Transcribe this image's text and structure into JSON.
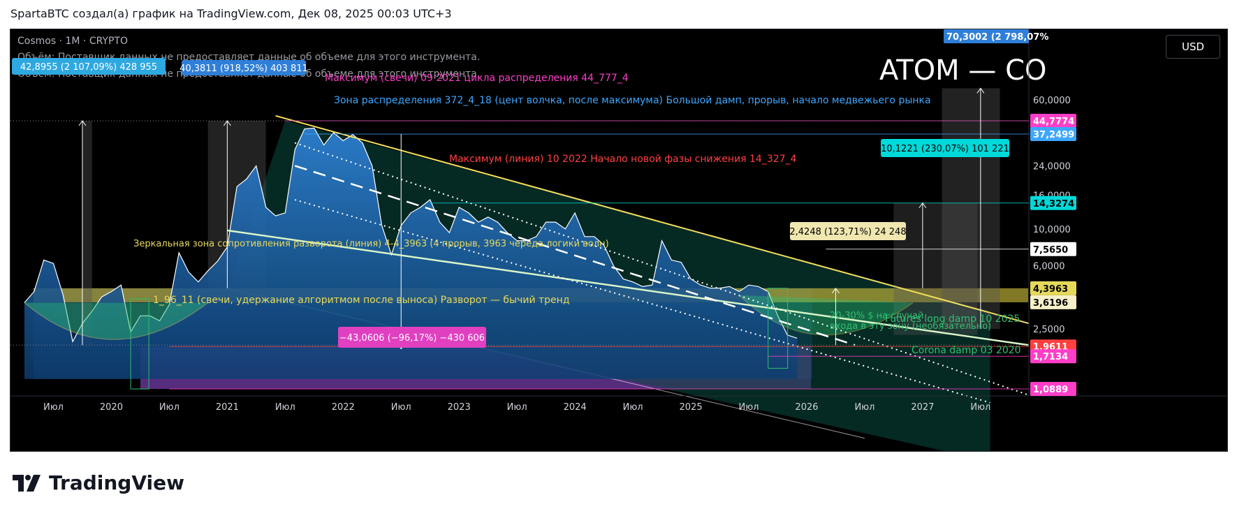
{
  "header": {
    "caption": "SpartaBTC создал(а) график на TradingView.com, Дек 08, 2025 00:03 UTC+3"
  },
  "brand": {
    "name": "TradingView"
  },
  "currency_button": "USD",
  "colors": {
    "background": "#000000",
    "price_fill": "#1f6fb8",
    "yellow_line": "#e6d95a",
    "distribution_zone": "#3da6ff",
    "max_label": "#ff3ec8",
    "red_label": "#ff4040",
    "green_zone": "#2fbf71",
    "purple_zone": "#7b3fb0"
  },
  "chart_data": {
    "type": "area",
    "symbol_title": "Cosmos · 1M · CRYPTO",
    "volume_notes": [
      "Объём: Поставщик данных не предоставляет данные об объеме для этого инструмента.",
      "Объём: Поставщик данных не предоставляет данные об объеме для этого инструмента."
    ],
    "big_title": "ATOM — CO",
    "y_scale": "log",
    "ylim": [
      1.2,
      100
    ],
    "xlim": [
      "2019-04",
      "2027-12"
    ],
    "x_ticks": [
      {
        "date": "2019-07",
        "label": "Июл"
      },
      {
        "date": "2020-01",
        "label": "2020"
      },
      {
        "date": "2020-07",
        "label": "Июл"
      },
      {
        "date": "2021-01",
        "label": "2021"
      },
      {
        "date": "2021-07",
        "label": "Июл"
      },
      {
        "date": "2022-01",
        "label": "2022"
      },
      {
        "date": "2022-07",
        "label": "Июл"
      },
      {
        "date": "2023-01",
        "label": "2023"
      },
      {
        "date": "2023-07",
        "label": "Июл"
      },
      {
        "date": "2024-01",
        "label": "2024"
      },
      {
        "date": "2024-07",
        "label": "Июл"
      },
      {
        "date": "2025-01",
        "label": "2025"
      },
      {
        "date": "2025-07",
        "label": "Июл"
      },
      {
        "date": "2026-01",
        "label": "2026"
      },
      {
        "date": "2026-07",
        "label": "Июл"
      },
      {
        "date": "2027-01",
        "label": "2027"
      },
      {
        "date": "2027-07",
        "label": "Июл"
      }
    ],
    "y_ticks": [
      "60,0000",
      "24,0000",
      "16,0000",
      "10,0000",
      "6,0000",
      "2,5000"
    ],
    "y_tick_values": [
      60,
      24,
      16,
      10,
      6,
      2.5
    ],
    "price_labels": [
      {
        "value": 70.3002,
        "text": "70,3002 (2 798,07%",
        "color": "#2f7fd8"
      },
      {
        "value": 44.7774,
        "text": "44,7774",
        "color": "#ff3ec8"
      },
      {
        "value": 37.2499,
        "text": "37,2499",
        "color": "#3da6ff"
      },
      {
        "value": 14.3274,
        "text": "14,3274",
        "color": "#00d9d9"
      },
      {
        "value": 7.565,
        "text": "7,5650",
        "color": "#ffffff"
      },
      {
        "value": 4.3963,
        "text": "4,3963",
        "color": "#e6d95a"
      },
      {
        "value": 3.6196,
        "text": "3,6196",
        "color": "#f5f0c8"
      },
      {
        "value": 1.9611,
        "text": "1,9611",
        "color": "#ff4040"
      },
      {
        "value": 1.7134,
        "text": "1,7134",
        "color": "#ff3ec8"
      },
      {
        "value": 1.0889,
        "text": "1,0889",
        "color": "#ff3ec8"
      }
    ],
    "series": [
      {
        "x": [
          "2019-04",
          "2019-05",
          "2019-06",
          "2019-07",
          "2019-08",
          "2019-09",
          "2019-10",
          "2019-11",
          "2019-12",
          "2020-01",
          "2020-02",
          "2020-03",
          "2020-04",
          "2020-05",
          "2020-06",
          "2020-07",
          "2020-08",
          "2020-09",
          "2020-10",
          "2020-11",
          "2020-12",
          "2021-01",
          "2021-02",
          "2021-03",
          "2021-04",
          "2021-05",
          "2021-06",
          "2021-07",
          "2021-08",
          "2021-09",
          "2021-10",
          "2021-11",
          "2021-12",
          "2022-01",
          "2022-02",
          "2022-03",
          "2022-04",
          "2022-05",
          "2022-06",
          "2022-07",
          "2022-08",
          "2022-09",
          "2022-10",
          "2022-11",
          "2022-12",
          "2023-01",
          "2023-02",
          "2023-03",
          "2023-04",
          "2023-05",
          "2023-06",
          "2023-07",
          "2023-08",
          "2023-09",
          "2023-10",
          "2023-11",
          "2023-12",
          "2024-01",
          "2024-02",
          "2024-03",
          "2024-04",
          "2024-05",
          "2024-06",
          "2024-07",
          "2024-08",
          "2024-09",
          "2024-10",
          "2024-11",
          "2024-12",
          "2025-01",
          "2025-02",
          "2025-03",
          "2025-04",
          "2025-05",
          "2025-06",
          "2025-07",
          "2025-08",
          "2025-09",
          "2025-10",
          "2025-11",
          "2025-12"
        ],
        "values": [
          3.6,
          4.2,
          6.5,
          6.2,
          4.0,
          2.1,
          2.7,
          3.2,
          3.9,
          4.2,
          4.6,
          2.4,
          3.0,
          3.0,
          2.8,
          3.5,
          7.2,
          5.5,
          4.8,
          5.6,
          6.4,
          7.8,
          18.0,
          20.0,
          24.0,
          13.5,
          12.0,
          12.5,
          30.0,
          40.0,
          40.5,
          32.0,
          38.0,
          34.0,
          37.0,
          33.0,
          24.0,
          10.5,
          7.0,
          10.5,
          12.5,
          13.5,
          15.0,
          11.0,
          9.5,
          13.5,
          12.5,
          11.0,
          11.8,
          11.0,
          9.5,
          8.5,
          8.5,
          9.0,
          11.0,
          11.0,
          10.0,
          12.5,
          9.0,
          9.0,
          8.0,
          6.0,
          5.0,
          4.8,
          4.5,
          4.6,
          8.5,
          6.5,
          6.3,
          5.0,
          4.6,
          4.4,
          4.4,
          4.5,
          4.2,
          4.6,
          4.5,
          4.2,
          3.0,
          2.3,
          2.2
        ]
      }
    ],
    "annotations": [
      {
        "text": "Максимум (свечи) 09 2021 цикла распределения  44_777_4",
        "color": "#ff3ec8"
      },
      {
        "text": "Зона распределения 372_4_18 (цент волчка, после максимума) Большой дамп, прорыв, начало медвежьего рынка",
        "color": "#3da6ff"
      },
      {
        "text": "Максимум (линия) 10 2022 Начало новой фазы снижения 14_327_4",
        "color": "#ff4040"
      },
      {
        "text": "Зеркальная зона сопротивления разворота (линия) 4-4_3963 (4 прорыв, 3963 череда логики волн)",
        "color": "#e6d95a"
      },
      {
        "text": "1_96_11 (свечи, удержание алгоритмом после выноса) Разворот — бычий тренд",
        "color": "#e6d95a"
      },
      {
        "text": "20-30% $ на случай",
        "color": "#2fbf71"
      },
      {
        "text": "входа в эту зону (необязательно)",
        "color": "#2fbf71"
      },
      {
        "text": "Futures long damp 10 2025",
        "color": "#2fbf71"
      },
      {
        "text": "Corona damp 03 2020",
        "color": "#2fbf71"
      }
    ],
    "measure_labels": [
      {
        "text": "42,8955 (2 107,09%) 428 955",
        "color": "#2ea8e0"
      },
      {
        "text": "40,3811 (918,52%) 403 811",
        "color": "#2f7fd8"
      },
      {
        "text": "−43,0606 (−96,17%) −430 606",
        "color": "#e040c0"
      },
      {
        "text": "10,1221 (230,07%) 101 221",
        "color": "#00d9d9"
      },
      {
        "text": "2,4248 (123,71%) 24 248",
        "color": "#f0e6b0"
      }
    ]
  }
}
